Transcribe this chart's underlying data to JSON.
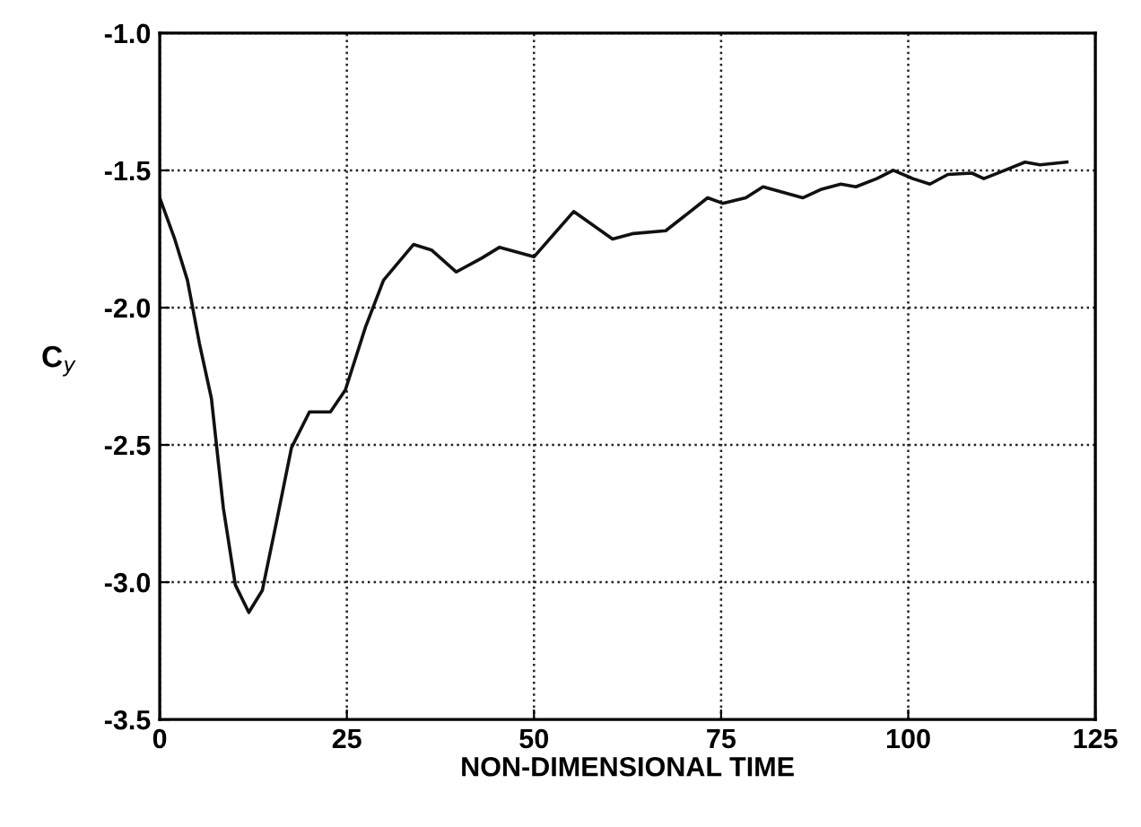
{
  "chart_data": {
    "type": "line",
    "xlabel": "NON-DIMENSIONAL TIME",
    "ylabel": "C$_{y}$",
    "xlim": [
      0,
      125
    ],
    "xticks": [
      0,
      25,
      50,
      75,
      100,
      125
    ],
    "ylim": [
      -3.5,
      -1.0
    ],
    "yticks": [
      {
        "value": -3.5,
        "label": "-3.5"
      },
      {
        "value": -3.0,
        "label": "-3.0"
      },
      {
        "value": -2.5,
        "label": "-2.5"
      },
      {
        "value": -2.0,
        "label": "-2.0"
      },
      {
        "value": -1.5,
        "label": "-1.5"
      },
      {
        "value": -1.0,
        "label": "-1.0"
      }
    ],
    "grid": true,
    "line_style": "solid",
    "marker": "none",
    "series": [
      {
        "color": "#111111",
        "x": [
          0,
          2,
          3.7,
          5.3,
          6.9,
          8.5,
          10.1,
          11.9,
          13.7,
          15.6,
          17.6,
          20,
          22.8,
          24.8,
          27.5,
          29.9,
          33.9,
          36.3,
          39.6,
          43,
          45.4,
          50,
          55.3,
          60.5,
          63.3,
          67.6,
          73.2,
          75.2,
          78.3,
          80.6,
          85.9,
          88.3,
          91,
          93,
          95.8,
          98,
          100.6,
          102.9,
          105.3,
          108.5,
          110.1,
          112.9,
          115.6,
          117.6,
          121.2
        ],
        "values": [
          -1.6,
          -1.75,
          -1.9,
          -2.13,
          -2.33,
          -2.73,
          -3.01,
          -3.11,
          -3.03,
          -2.78,
          -2.51,
          -2.38,
          -2.38,
          -2.3,
          -2.07,
          -1.9,
          -1.77,
          -1.79,
          -1.87,
          -1.82,
          -1.78,
          -1.815,
          -1.65,
          -1.75,
          -1.73,
          -1.72,
          -1.6,
          -1.62,
          -1.6,
          -1.56,
          -1.6,
          -1.57,
          -1.55,
          -1.56,
          -1.53,
          -1.5,
          -1.53,
          -1.55,
          -1.515,
          -1.51,
          -1.53,
          -1.5,
          -1.47,
          -1.48,
          -1.47
        ]
      }
    ]
  }
}
